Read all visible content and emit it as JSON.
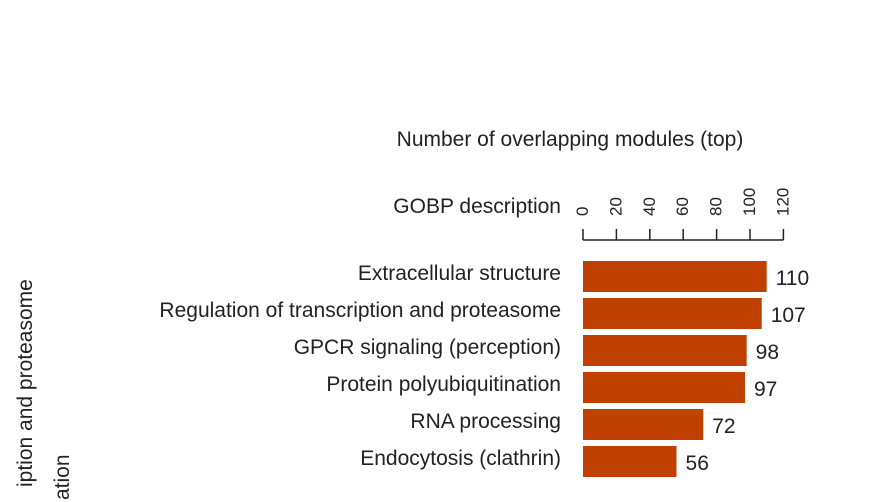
{
  "chart_data": {
    "type": "bar",
    "orientation": "horizontal",
    "title": "Number of overlapping modules (top)",
    "category_header": "GOBP description",
    "categories": [
      "Extracellular structure",
      "Regulation of transcription and proteasome",
      "GPCR signaling (perception)",
      "Protein polyubiquitination",
      "RNA processing",
      "Endocytosis (clathrin)"
    ],
    "values": [
      110,
      107,
      98,
      97,
      72,
      56
    ],
    "xlim": [
      0,
      120
    ],
    "ticks": [
      0,
      20,
      40,
      60,
      80,
      100,
      120
    ],
    "tick_labels": [
      "0",
      "20",
      "40",
      "60",
      "80",
      "100",
      "120"
    ],
    "grid": false,
    "bar_color": "#c04000"
  },
  "side_panel": {
    "line1": "iption and proteasome",
    "line2": "ation"
  }
}
